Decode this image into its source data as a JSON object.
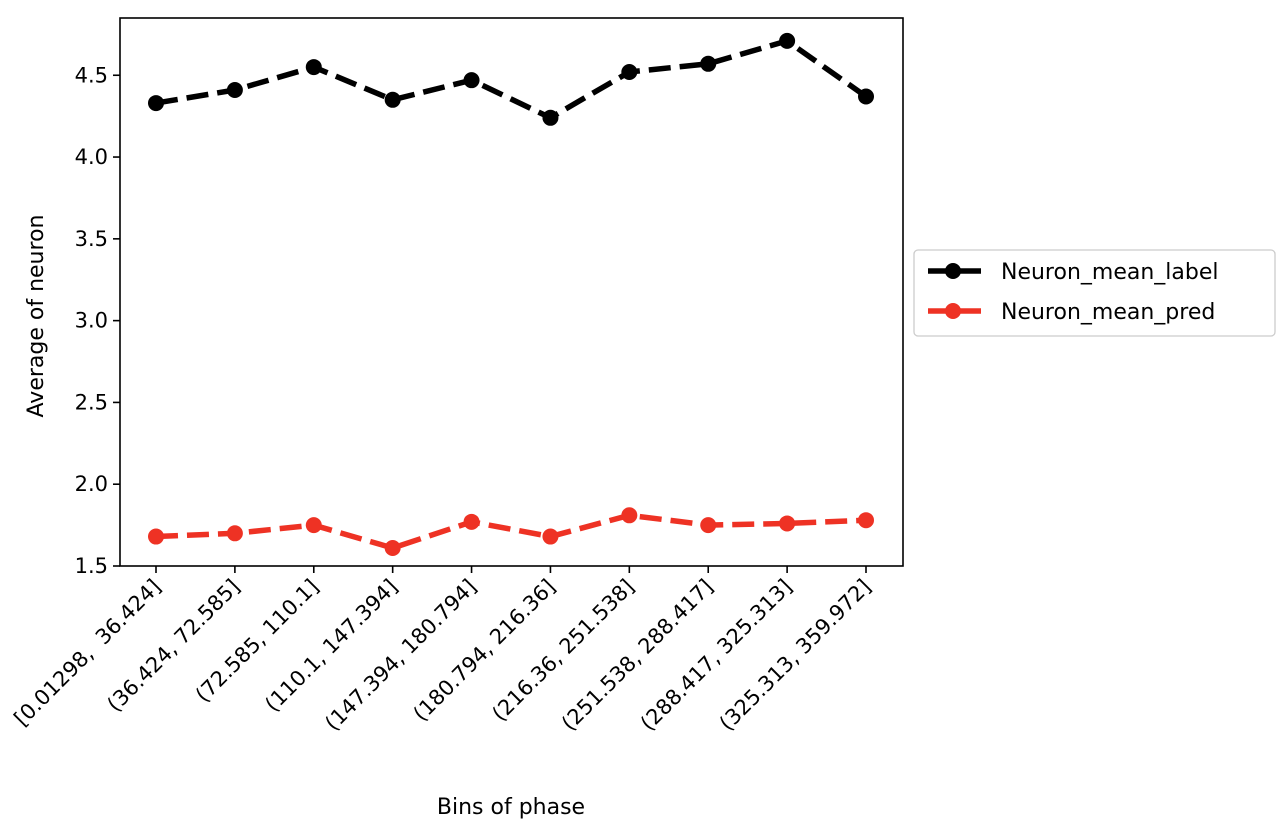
{
  "chart_data": {
    "type": "line",
    "xlabel": "Bins of phase",
    "ylabel": "Average of neuron",
    "categories": [
      "[0.01298,  36.424]",
      "(36.424, 72.585]",
      "(72.585, 110.1]",
      "(110.1, 147.394]",
      "(147.394, 180.794]",
      "(180.794, 216.36]",
      "(216.36, 251.538]",
      "(251.538, 288.417]",
      "(288.417, 325.313]",
      "(325.313, 359.972]"
    ],
    "ylim": [
      1.5,
      4.85
    ],
    "yticks": [
      "1.5",
      "2.0",
      "2.5",
      "3.0",
      "3.5",
      "4.0",
      "4.5"
    ],
    "grid": false,
    "legend_position": "right-outside",
    "series": [
      {
        "name": "Neuron_mean_label",
        "color": "#000000",
        "line_style": "dashed",
        "marker": "circle",
        "values": [
          4.33,
          4.41,
          4.55,
          4.35,
          4.47,
          4.24,
          4.52,
          4.57,
          4.71,
          4.37
        ]
      },
      {
        "name": "Neuron_mean_pred",
        "color": "#ee3224",
        "line_style": "dashed",
        "marker": "circle",
        "values": [
          1.68,
          1.7,
          1.75,
          1.61,
          1.77,
          1.68,
          1.81,
          1.75,
          1.76,
          1.78
        ]
      }
    ]
  }
}
